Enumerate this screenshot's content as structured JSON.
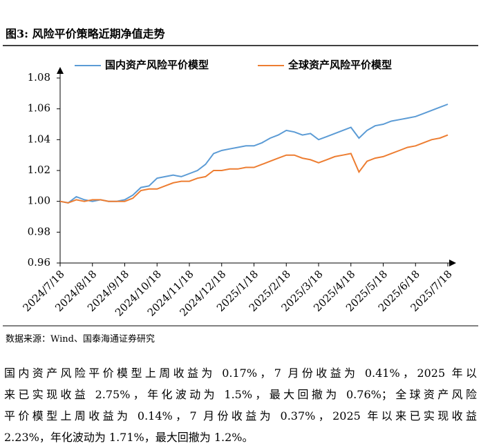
{
  "chart_data": {
    "type": "line",
    "title": "图3: 风险平价策略近期净值走势",
    "categories": [
      "2024/7/18",
      null,
      null,
      null,
      "2024/8/18",
      null,
      null,
      null,
      "2024/9/18",
      null,
      null,
      null,
      "2024/10/18",
      null,
      null,
      null,
      "2024/11/18",
      null,
      null,
      null,
      "2024/12/18",
      null,
      null,
      null,
      "2025/1/18",
      null,
      null,
      null,
      "2025/2/18",
      null,
      null,
      null,
      "2025/3/18",
      null,
      null,
      null,
      "2025/4/18",
      null,
      null,
      null,
      "2025/5/18",
      null,
      null,
      null,
      "2025/6/18",
      null,
      null,
      null,
      "2025/7/18"
    ],
    "series": [
      {
        "name": "国内资产风险平价模型",
        "color": "#5b9bd5",
        "values": [
          1.0,
          0.999,
          1.003,
          1.001,
          1.0,
          1.001,
          1.0,
          1.0,
          1.001,
          1.004,
          1.009,
          1.01,
          1.015,
          1.016,
          1.017,
          1.016,
          1.018,
          1.02,
          1.024,
          1.031,
          1.033,
          1.034,
          1.035,
          1.036,
          1.036,
          1.038,
          1.041,
          1.043,
          1.046,
          1.045,
          1.043,
          1.044,
          1.04,
          1.042,
          1.044,
          1.046,
          1.048,
          1.041,
          1.046,
          1.049,
          1.05,
          1.052,
          1.053,
          1.054,
          1.055,
          1.057,
          1.059,
          1.061,
          1.063
        ]
      },
      {
        "name": "全球资产风险平价模型",
        "color": "#ed7d31",
        "values": [
          1.0,
          0.999,
          1.001,
          1.0,
          1.001,
          1.001,
          1.0,
          1.0,
          1.0,
          1.002,
          1.007,
          1.008,
          1.008,
          1.01,
          1.012,
          1.013,
          1.013,
          1.015,
          1.016,
          1.02,
          1.02,
          1.021,
          1.021,
          1.022,
          1.022,
          1.024,
          1.026,
          1.028,
          1.03,
          1.03,
          1.028,
          1.027,
          1.025,
          1.027,
          1.029,
          1.03,
          1.031,
          1.019,
          1.026,
          1.028,
          1.029,
          1.031,
          1.033,
          1.035,
          1.036,
          1.038,
          1.04,
          1.041,
          1.043
        ]
      }
    ],
    "ylim": [
      0.96,
      1.08
    ],
    "yticks": [
      0.96,
      0.98,
      {
        "value": 1,
        "label": "1.00"
      },
      1.02,
      1.04,
      1.06,
      1.08
    ],
    "grid": false
  },
  "source": "数据来源：Wind、国泰海通证券研究",
  "paragraph": [
    "国内资产风险平价模型上周收益为 0.17%，7 月份收益为 0.41%，2025 年以",
    "来已实现收益 2.75%，年化波动为 1.5%，最大回撤为 0.76%；全球资产风险",
    "平价模型上周收益为 0.14%，7 月份收益为 0.37%，2025 年以来已实现收益",
    "2.23%，年化波动为 1.71%，最大回撤为 1.2%。"
  ]
}
